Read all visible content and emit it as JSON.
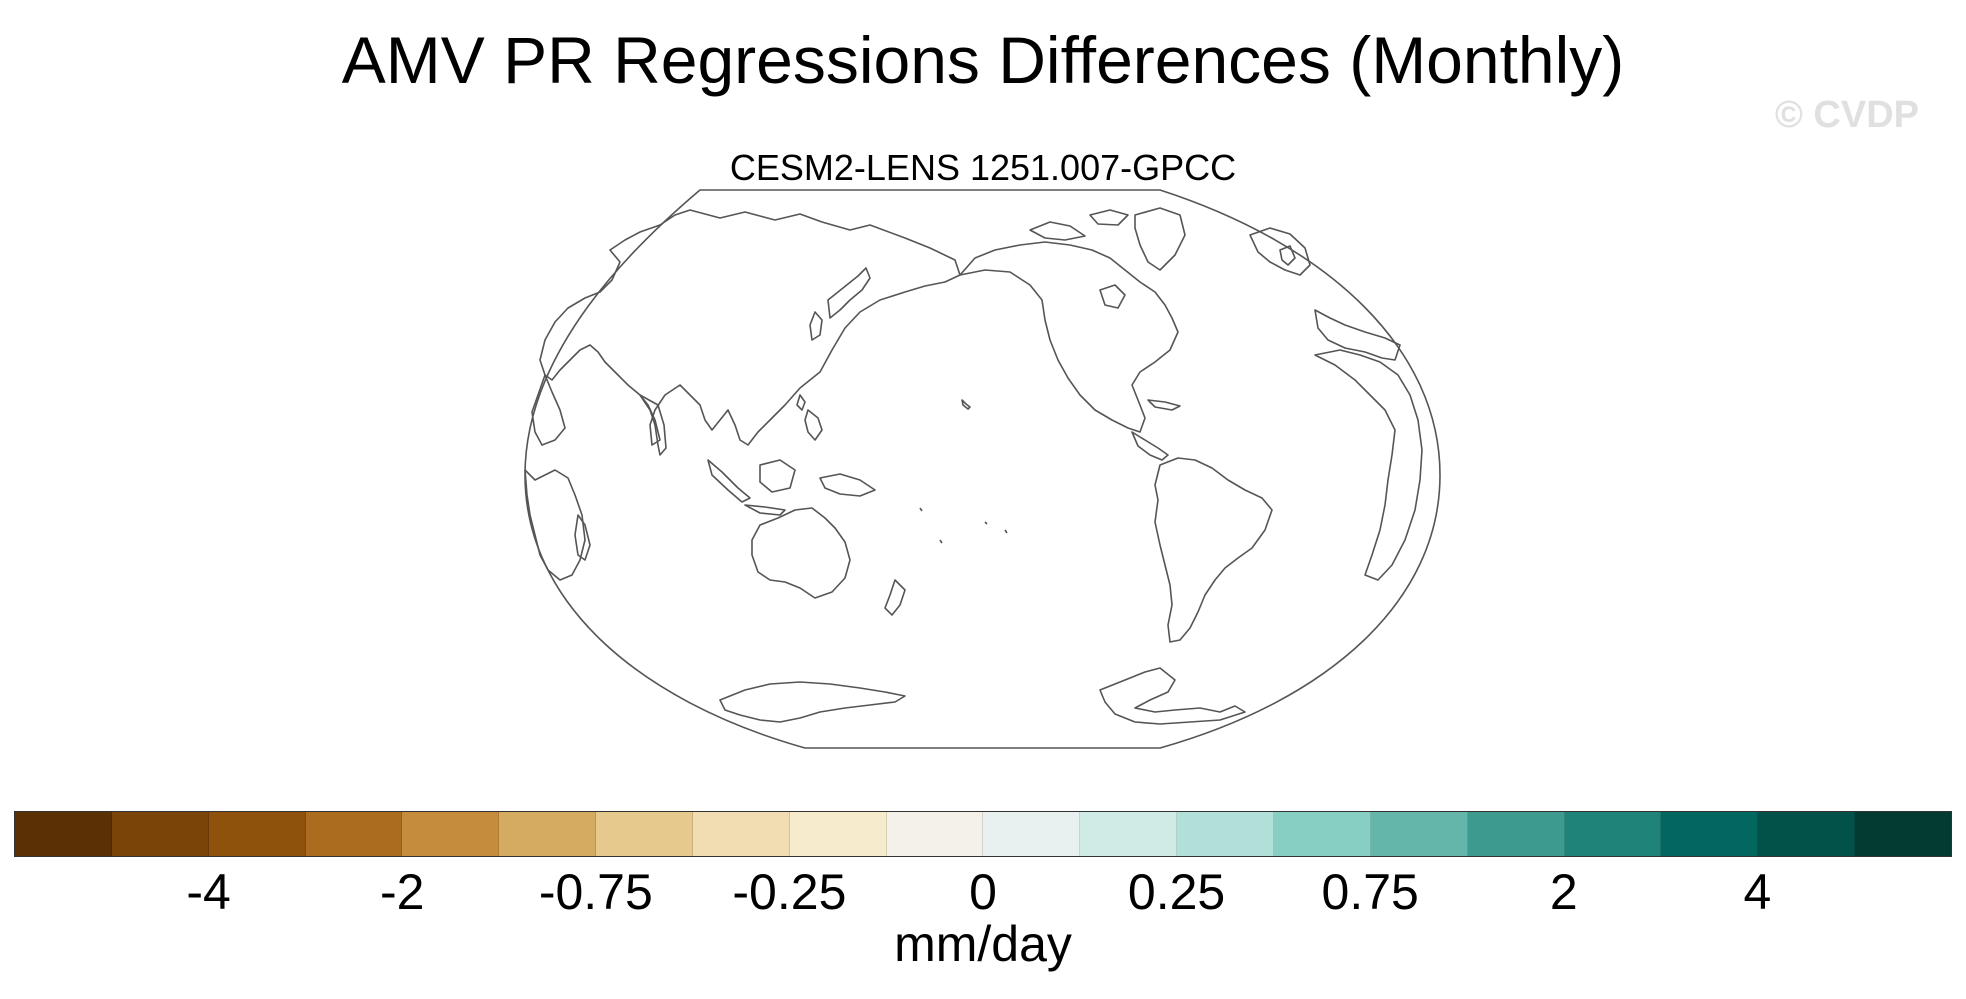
{
  "title": "AMV PR Regressions Differences (Monthly)",
  "watermark": "© CVDP",
  "map": {
    "subtitle": "CESM2-LENS 1251.007-GPCC",
    "projection": "Robinson, centered on Pacific"
  },
  "colorbar": {
    "units": "mm/day",
    "colors": [
      "#5a3004",
      "#7a4308",
      "#8e520d",
      "#ab6c20",
      "#c48c3c",
      "#d4ab60",
      "#e6c98d",
      "#f2ddb2",
      "#f6ebcc",
      "#f4f0ea",
      "#e8f1ef",
      "#d0ebe6",
      "#b1e0d9",
      "#88cfc3",
      "#65b6aa",
      "#3d9a8f",
      "#20837a",
      "#01675f",
      "#03524a",
      "#033b33"
    ],
    "labels": [
      "-4",
      "-2",
      "-0.75",
      "-0.25",
      "0",
      "0.25",
      "0.75",
      "2",
      "4"
    ]
  }
}
